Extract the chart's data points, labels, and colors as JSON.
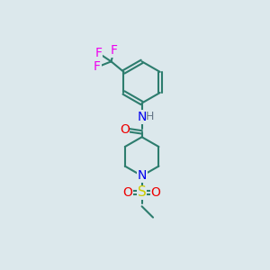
{
  "bg_color": "#dce8ec",
  "bond_color": "#2d7d6e",
  "atom_colors": {
    "O": "#ee0000",
    "N": "#0000ee",
    "S": "#cccc00",
    "F": "#ee00ee",
    "H": "#667788",
    "C": "#2d7d6e"
  },
  "font_size_atom": 10,
  "font_size_H": 9
}
